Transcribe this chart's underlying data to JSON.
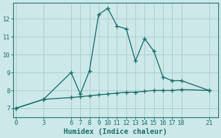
{
  "xlabel": "Humidex (Indice chaleur)",
  "background_color": "#cde8e8",
  "grid_color": "#aacece",
  "line_color": "#1a6e6e",
  "x_ticks": [
    0,
    3,
    6,
    7,
    8,
    9,
    10,
    11,
    12,
    13,
    14,
    15,
    16,
    17,
    18,
    21
  ],
  "y_ticks": [
    7,
    8,
    9,
    10,
    11,
    12
  ],
  "ylim": [
    6.5,
    12.9
  ],
  "xlim": [
    -0.3,
    22.0
  ],
  "series1_x": [
    0,
    3,
    6,
    7,
    8,
    9,
    10,
    11,
    12,
    13,
    14,
    15,
    16,
    17,
    18,
    21
  ],
  "series1_y": [
    7.0,
    7.5,
    9.0,
    7.8,
    9.1,
    12.25,
    12.6,
    11.6,
    11.45,
    9.65,
    10.9,
    10.2,
    8.75,
    8.55,
    8.55,
    8.0
  ],
  "series2_x": [
    0,
    3,
    6,
    7,
    8,
    9,
    10,
    11,
    12,
    13,
    14,
    15,
    16,
    17,
    18,
    21
  ],
  "series2_y": [
    7.0,
    7.5,
    7.6,
    7.65,
    7.7,
    7.75,
    7.8,
    7.85,
    7.9,
    7.9,
    7.95,
    8.0,
    8.0,
    8.0,
    8.05,
    8.0
  ],
  "font_color": "#1a6e6e",
  "tick_font_size": 6.5,
  "label_font_size": 7.5
}
